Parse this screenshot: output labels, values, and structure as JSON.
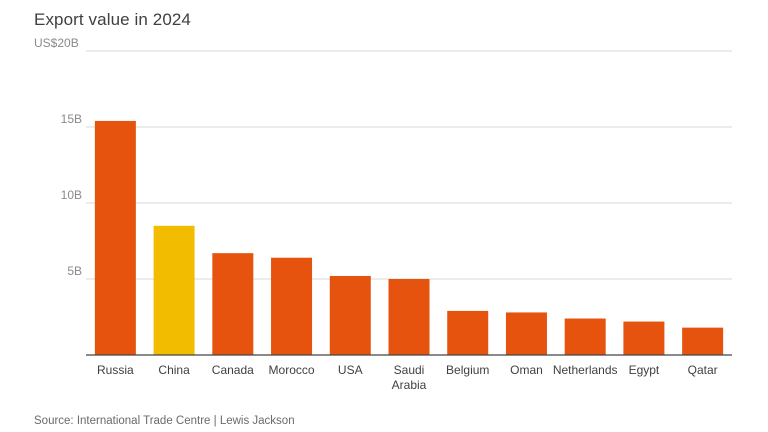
{
  "chart_data": {
    "type": "bar",
    "title": "Export value in 2024",
    "source": "Source: International Trade Centre | Lewis Jackson",
    "categories": [
      "Russia",
      "China",
      "Canada",
      "Morocco",
      "USA",
      "Saudi Arabia",
      "Belgium",
      "Oman",
      "Netherlands",
      "Egypt",
      "Qatar"
    ],
    "category_lines": [
      [
        "Russia"
      ],
      [
        "China"
      ],
      [
        "Canada"
      ],
      [
        "Morocco"
      ],
      [
        "USA"
      ],
      [
        "Saudi",
        "Arabia"
      ],
      [
        "Belgium"
      ],
      [
        "Oman"
      ],
      [
        "Netherlands"
      ],
      [
        "Egypt"
      ],
      [
        "Qatar"
      ]
    ],
    "values": [
      15.4,
      8.5,
      6.7,
      6.4,
      5.2,
      5.0,
      2.9,
      2.8,
      2.4,
      2.2,
      1.8
    ],
    "highlight_index": 1,
    "ylim": [
      0,
      20
    ],
    "yticks": [
      {
        "value": 5,
        "label": "5B"
      },
      {
        "value": 10,
        "label": "10B"
      },
      {
        "value": 15,
        "label": "15B"
      },
      {
        "value": 20,
        "label": "US$20B"
      }
    ],
    "colors": {
      "bar": "#e5530f",
      "highlight": "#f2bd00",
      "grid": "#d8d8d8",
      "axis": "#444444"
    },
    "grid": true,
    "legend": "none"
  }
}
